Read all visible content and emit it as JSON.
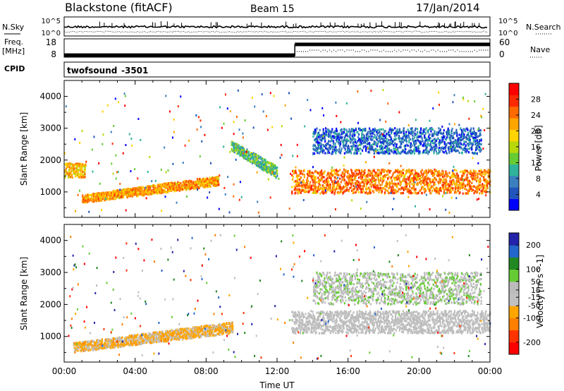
{
  "header": {
    "station": "Blackstone (fitACF)",
    "beam": "Beam 15",
    "date": "17/Jan/2014"
  },
  "noise_panel": {
    "left_label": "N.Sky",
    "right_label": "N.Search",
    "y_ticks": [
      "10^5",
      "10^0"
    ]
  },
  "freq_panel": {
    "left_label_line1": "Freq.",
    "left_label_line2": "[MHz]",
    "right_label": "Nave",
    "left_ticks": [
      "18",
      "8"
    ],
    "right_ticks": [
      "60",
      "0"
    ]
  },
  "cpid_panel": {
    "label": "CPID",
    "program": "twofsound",
    "cpid": "-3501"
  },
  "colors": {
    "power_scale": [
      "#0000ff",
      "#2255bb",
      "#3a7fc0",
      "#2fb39a",
      "#66cc33",
      "#b8d80a",
      "#ffd400",
      "#ffa500",
      "#ff6a00",
      "#ff2a00",
      "#ff0000"
    ],
    "velocity_scale": [
      "#2222aa",
      "#2266cc",
      "#228822",
      "#66cc33",
      "#bbbbbb",
      "#c0c0c0",
      "#ffa500",
      "#ff7f00",
      "#ff3300",
      "#ff0000"
    ]
  },
  "chart_data": [
    {
      "type": "heatmap",
      "name": "power-panel",
      "title": "Power",
      "xlabel": "",
      "ylabel": "Slant Range [km]",
      "xlim": [
        "00:00",
        "24:00"
      ],
      "ylim": [
        200,
        4500
      ],
      "y_ticks": [
        1000,
        2000,
        3000,
        4000
      ],
      "colorbar": {
        "label": "Power [dB]",
        "ticks": [
          4,
          8,
          12,
          16,
          20,
          24,
          28
        ],
        "range": [
          0,
          32
        ]
      },
      "features": [
        {
          "hours": [
            0.0,
            1.2
          ],
          "range_km": [
            1450,
            1900
          ],
          "value_db": 21
        },
        {
          "hours": [
            1.0,
            8.7
          ],
          "range_km_start": [
            650,
            900
          ],
          "range_km_end": [
            1200,
            1500
          ],
          "value_db": 22
        },
        {
          "hours": [
            9.4,
            12.0
          ],
          "range_km_start": [
            2300,
            2600
          ],
          "range_km_end": [
            1400,
            1800
          ],
          "value_db": 12
        },
        {
          "hours": [
            12.8,
            24.0
          ],
          "range_km": [
            950,
            1700
          ],
          "value_db": 24
        },
        {
          "hours": [
            14.0,
            23.5
          ],
          "range_km": [
            2200,
            3000
          ],
          "value_db": 6
        }
      ]
    },
    {
      "type": "heatmap",
      "name": "velocity-panel",
      "title": "Velocity",
      "xlabel": "Time UT",
      "ylabel": "Slant Range [km]",
      "xlim": [
        "00:00",
        "24:00"
      ],
      "x_ticks": [
        "00:00",
        "04:00",
        "08:00",
        "12:00",
        "16:00",
        "20:00",
        "00:00"
      ],
      "ylim": [
        200,
        4500
      ],
      "y_ticks": [
        1000,
        2000,
        3000,
        4000
      ],
      "colorbar": {
        "label": "Velocity [m s^-1]",
        "ticks": [
          200,
          100,
          50,
          15,
          -15,
          -50,
          -100,
          -200
        ],
        "range": [
          -250,
          250
        ]
      },
      "features": [
        {
          "hours": [
            0.5,
            9.5
          ],
          "range_km_start": [
            500,
            800
          ],
          "range_km_end": [
            1100,
            1450
          ],
          "value_ms": -60
        },
        {
          "hours": [
            12.8,
            24.0
          ],
          "range_km": [
            1100,
            1800
          ],
          "value_ms": 0
        },
        {
          "hours": [
            14.0,
            23.5
          ],
          "range_km": [
            2000,
            3000
          ],
          "value_ms": 30
        }
      ]
    }
  ]
}
